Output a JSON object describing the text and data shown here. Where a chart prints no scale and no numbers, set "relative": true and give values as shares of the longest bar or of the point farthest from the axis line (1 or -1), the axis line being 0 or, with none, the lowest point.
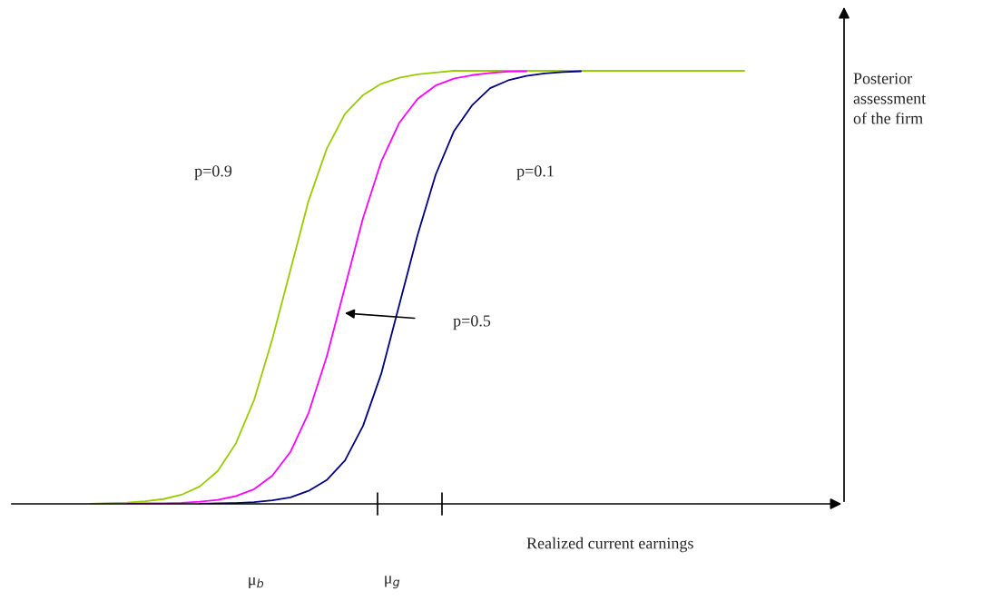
{
  "chart_data": {
    "type": "line",
    "relative": true,
    "xlabel": "Realized current earnings",
    "legend": false,
    "marker": "none",
    "line_style": "solid",
    "categories": [
      null,
      null,
      null,
      null,
      null,
      null,
      null,
      null,
      null,
      null,
      null,
      null,
      null,
      null,
      null,
      null,
      null,
      null,
      null,
      null,
      null,
      null,
      null,
      null,
      null,
      null,
      null,
      null,
      null,
      null,
      null,
      null,
      null,
      null,
      null,
      null,
      null
    ],
    "series": [
      {
        "color": "#99cc00",
        "values": [
          0,
          0.002,
          0.003,
          0.006,
          0.011,
          0.021,
          0.04,
          0.076,
          0.14,
          0.24,
          0.38,
          0.54,
          0.7,
          0.82,
          0.9,
          0.944,
          0.97,
          0.984,
          0.992,
          0.996,
          1,
          1,
          1,
          1,
          1,
          1,
          1,
          1,
          1,
          1,
          1,
          1,
          1,
          1,
          1,
          1,
          1
        ]
      },
      {
        "color": "#ff00ff",
        "values": [
          null,
          null,
          0,
          0.001,
          0.0013,
          0.0025,
          0.005,
          0.009,
          0.018,
          0.034,
          0.065,
          0.12,
          0.21,
          0.34,
          0.5,
          0.66,
          0.79,
          0.88,
          0.935,
          0.966,
          0.982,
          0.99,
          0.995,
          0.998,
          0.999,
          null,
          null,
          null,
          null,
          null,
          null,
          null,
          null,
          null,
          null,
          null,
          null
        ]
      },
      {
        "color": "#000080",
        "values": [
          null,
          null,
          null,
          null,
          null,
          null,
          0,
          0.001,
          0.002,
          0.004,
          0.008,
          0.015,
          0.03,
          0.055,
          0.1,
          0.18,
          0.3,
          0.46,
          0.62,
          0.76,
          0.86,
          0.92,
          0.96,
          0.978,
          0.988,
          0.994,
          0.997,
          0.999,
          null,
          null,
          null,
          null,
          null,
          null,
          null,
          null,
          null
        ]
      }
    ],
    "annotations": [
      "p=0.9",
      "p=0.1",
      "p=0.5",
      "μ$_{b}$",
      "μ$_{g}$",
      "Posterior\nassessment\nof the firm"
    ]
  }
}
